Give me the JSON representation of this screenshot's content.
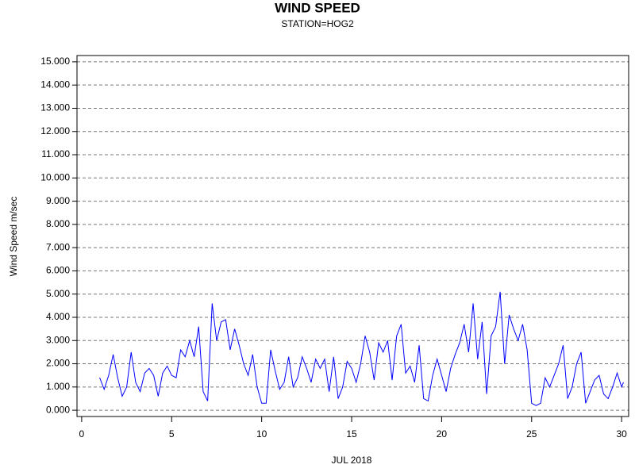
{
  "chart_data": {
    "type": "line",
    "title": "WIND SPEED",
    "subtitle": "STATION=HOG2",
    "xlabel": "JUL 2018",
    "ylabel": "Wind Speed m/sec",
    "color": "#0000ff",
    "grid": true,
    "xlim": [
      -0.26,
      30.39
    ],
    "xticks": [
      0,
      5,
      10,
      15,
      20,
      25,
      30
    ],
    "ylim": [
      -0.27,
      15.27
    ],
    "yticks": [
      {
        "value": 0,
        "label": "0.000"
      },
      {
        "value": 1,
        "label": "1.000"
      },
      {
        "value": 2,
        "label": "2.000"
      },
      {
        "value": 3,
        "label": "3.000"
      },
      {
        "value": 4,
        "label": "4.000"
      },
      {
        "value": 5,
        "label": "5.000"
      },
      {
        "value": 6,
        "label": "6.000"
      },
      {
        "value": 7,
        "label": "7.000"
      },
      {
        "value": 8,
        "label": "8.000"
      },
      {
        "value": 9,
        "label": "9.000"
      },
      {
        "value": 10,
        "label": "10.000"
      },
      {
        "value": 11,
        "label": "11.000"
      },
      {
        "value": 12,
        "label": "12.000"
      },
      {
        "value": 13,
        "label": "13.000"
      },
      {
        "value": 14,
        "label": "14.000"
      },
      {
        "value": 15,
        "label": "15.000"
      }
    ],
    "x": [
      1,
      1.25,
      1.5,
      1.75,
      2,
      2.25,
      2.5,
      2.75,
      3,
      3.25,
      3.5,
      3.75,
      4,
      4.25,
      4.5,
      4.75,
      5,
      5.25,
      5.5,
      5.75,
      6,
      6.25,
      6.5,
      6.75,
      7,
      7.25,
      7.5,
      7.75,
      8,
      8.25,
      8.5,
      8.75,
      9,
      9.25,
      9.5,
      9.75,
      10,
      10.25,
      10.5,
      10.75,
      11,
      11.25,
      11.5,
      11.75,
      12,
      12.25,
      12.5,
      12.75,
      13,
      13.25,
      13.5,
      13.75,
      14,
      14.25,
      14.5,
      14.75,
      15,
      15.25,
      15.5,
      15.75,
      16,
      16.25,
      16.5,
      16.75,
      17,
      17.25,
      17.5,
      17.75,
      18,
      18.25,
      18.5,
      18.75,
      19,
      19.25,
      19.5,
      19.75,
      20,
      20.25,
      20.5,
      20.75,
      21,
      21.25,
      21.5,
      21.75,
      22,
      22.25,
      22.5,
      22.75,
      23,
      23.25,
      23.5,
      23.75,
      24,
      24.25,
      24.5,
      24.75,
      25,
      25.25,
      25.5,
      25.75,
      26,
      26.25,
      26.5,
      26.75,
      27,
      27.25,
      27.5,
      27.75,
      28,
      28.25,
      28.5,
      28.75,
      29,
      29.25,
      29.5,
      29.75,
      30,
      30.1
    ],
    "values": [
      1.4,
      0.9,
      1.5,
      2.4,
      1.4,
      0.6,
      1.0,
      2.5,
      1.2,
      0.8,
      1.6,
      1.8,
      1.5,
      0.6,
      1.6,
      1.9,
      1.5,
      1.4,
      2.6,
      2.3,
      3.0,
      2.3,
      3.6,
      0.8,
      0.4,
      4.6,
      3.0,
      3.8,
      3.9,
      2.6,
      3.5,
      2.8,
      2.0,
      1.5,
      2.4,
      1.0,
      0.3,
      0.3,
      2.6,
      1.7,
      0.9,
      1.2,
      2.3,
      1.0,
      1.4,
      2.3,
      1.8,
      1.2,
      2.2,
      1.8,
      2.2,
      0.8,
      2.3,
      0.5,
      1.0,
      2.1,
      1.8,
      1.2,
      2.0,
      3.2,
      2.5,
      1.3,
      2.9,
      2.5,
      3.0,
      1.3,
      3.2,
      3.7,
      1.6,
      1.9,
      1.2,
      2.8,
      0.5,
      0.4,
      1.5,
      2.2,
      1.5,
      0.8,
      1.8,
      2.4,
      2.9,
      3.7,
      2.5,
      4.6,
      2.2,
      3.8,
      0.7,
      3.2,
      3.6,
      5.1,
      2.0,
      4.1,
      3.5,
      3.0,
      3.7,
      2.6,
      0.3,
      0.2,
      0.3,
      1.4,
      1.0,
      1.5,
      2.0,
      2.8,
      0.5,
      1.0,
      2.0,
      2.5,
      0.3,
      0.8,
      1.3,
      1.5,
      0.7,
      0.5,
      1.0,
      1.6,
      1.0,
      1.2
    ]
  }
}
